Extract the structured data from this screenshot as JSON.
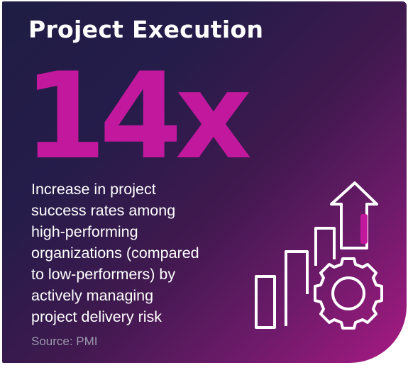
{
  "card": {
    "title": "Project Execution",
    "stat": "14x",
    "description": "Increase in project\nsuccess rates among\nhigh-performing\norganizations (compared\nto low-performers) by\nactively managing\nproject delivery risk",
    "source": "Source: PMI"
  },
  "illustration": {
    "icon_names": [
      "bar-chart-icon",
      "up-arrow-icon",
      "gear-icon"
    ],
    "line_color": "#ffffff",
    "accent_color": "#c2189e"
  },
  "colors": {
    "background_start": "#1f1d44",
    "background_end": "#a81a83",
    "stat": "#c2189e",
    "text": "#ffffff",
    "source": "#9a98ab"
  }
}
